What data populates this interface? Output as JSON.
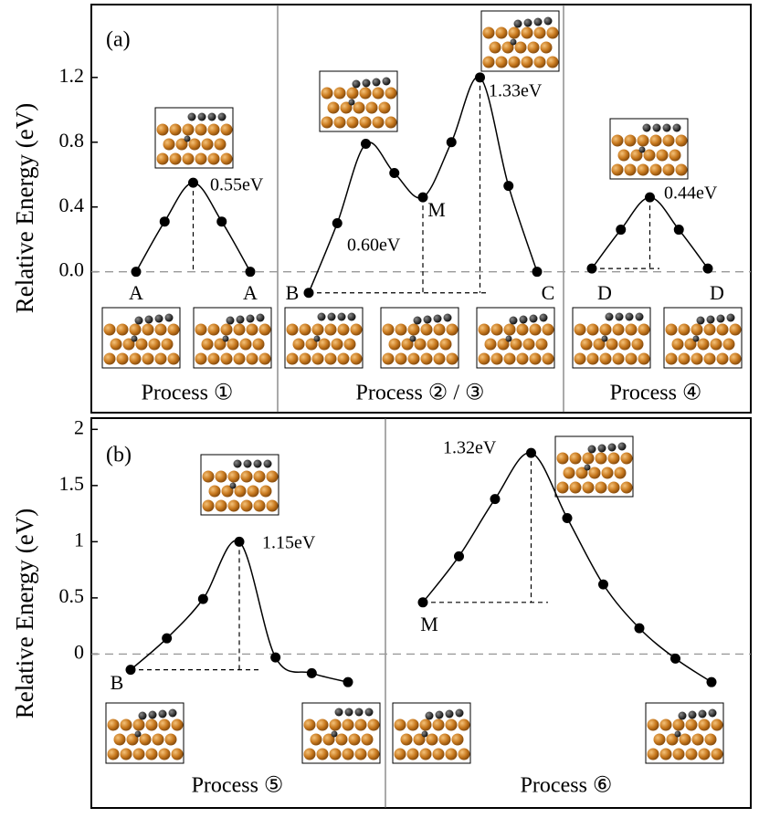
{
  "chart_data": [
    {
      "type": "line",
      "panel_label": "(a)",
      "y_label": "Relative Energy (eV)",
      "color": "#000000",
      "ylim": [
        -0.87,
        1.65
      ],
      "yticks": [
        {
          "value": 0,
          "label": "0.0"
        },
        0.4,
        0.8,
        1.2
      ],
      "zero_line": true,
      "series": [
        {
          "name": "Process ①",
          "values": [
            0,
            0.31,
            0.55,
            0.31,
            0
          ],
          "point_labels": [
            "A",
            null,
            null,
            null,
            "A"
          ],
          "annotations": [
            "0.55eV"
          ]
        },
        {
          "name": "Process ② / ③",
          "values": [
            -0.13,
            0.3,
            0.79,
            0.61,
            0.46,
            0.8,
            1.2,
            0.53,
            0
          ],
          "point_labels": [
            "B",
            null,
            null,
            null,
            "M",
            null,
            null,
            null,
            "C"
          ],
          "annotations": [
            "0.60eV",
            "1.33eV"
          ]
        },
        {
          "name": "Process ④",
          "values": [
            0.02,
            0.26,
            0.46,
            0.26,
            0.02
          ],
          "point_labels": [
            "D",
            null,
            null,
            null,
            "D"
          ],
          "annotations": [
            "0.44eV"
          ]
        }
      ]
    },
    {
      "type": "line",
      "panel_label": "(b)",
      "y_label": "Relative Energy (eV)",
      "color": "#000000",
      "ylim": [
        -1.37,
        2.1
      ],
      "yticks": [
        0,
        0.5,
        1,
        1.5,
        2
      ],
      "zero_line": true,
      "series": [
        {
          "name": "Process ⑤",
          "values": [
            -0.14,
            0.14,
            0.49,
            1.0,
            -0.03,
            -0.17,
            -0.25
          ],
          "point_labels": [
            "B",
            null,
            null,
            null,
            null,
            null,
            null
          ],
          "annotations": [
            "1.15eV"
          ]
        },
        {
          "name": "Process ⑥",
          "values": [
            0.46,
            0.87,
            1.38,
            1.79,
            1.21,
            0.62,
            0.23,
            -0.04,
            -0.25
          ],
          "point_labels": [
            "M",
            null,
            null,
            null,
            null,
            null,
            null,
            null,
            null
          ],
          "annotations": [
            "1.32eV"
          ]
        }
      ]
    }
  ]
}
